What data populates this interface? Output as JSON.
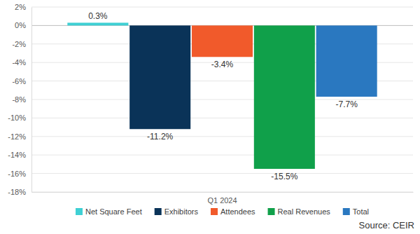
{
  "chart_data": {
    "type": "bar",
    "categories": [
      "Q1 2024"
    ],
    "series": [
      {
        "name": "Net Square Feet",
        "color": "#3fd0d4",
        "values": [
          0.3
        ],
        "value_labels": [
          "0.3%"
        ]
      },
      {
        "name": "Exhibitors",
        "color": "#0a3358",
        "values": [
          -11.2
        ],
        "value_labels": [
          "-11.2%"
        ]
      },
      {
        "name": "Attendees",
        "color": "#f15a2b",
        "values": [
          -3.4
        ],
        "value_labels": [
          "-3.4%"
        ]
      },
      {
        "name": "Real Revenues",
        "color": "#10a04a",
        "values": [
          -15.5
        ],
        "value_labels": [
          "-15.5%"
        ]
      },
      {
        "name": "Total",
        "color": "#2a78c0",
        "values": [
          -7.7
        ],
        "value_labels": [
          "-7.7%"
        ]
      }
    ],
    "ylim": [
      -18,
      2
    ],
    "yticks": [
      {
        "value": 2,
        "label": "2%"
      },
      {
        "value": 0,
        "label": "0%"
      },
      {
        "value": -2,
        "label": "-2%"
      },
      {
        "value": -4,
        "label": "-4%"
      },
      {
        "value": -6,
        "label": "-6%"
      },
      {
        "value": -8,
        "label": "-8%"
      },
      {
        "value": -10,
        "label": "-10%"
      },
      {
        "value": -12,
        "label": "-12%"
      },
      {
        "value": -14,
        "label": "-14%"
      },
      {
        "value": -16,
        "label": "-16%"
      },
      {
        "value": -18,
        "label": "-18%"
      }
    ],
    "grid": true,
    "data_labels": true,
    "legend": "bottom",
    "annotations": [
      "Source: CEIR"
    ]
  }
}
